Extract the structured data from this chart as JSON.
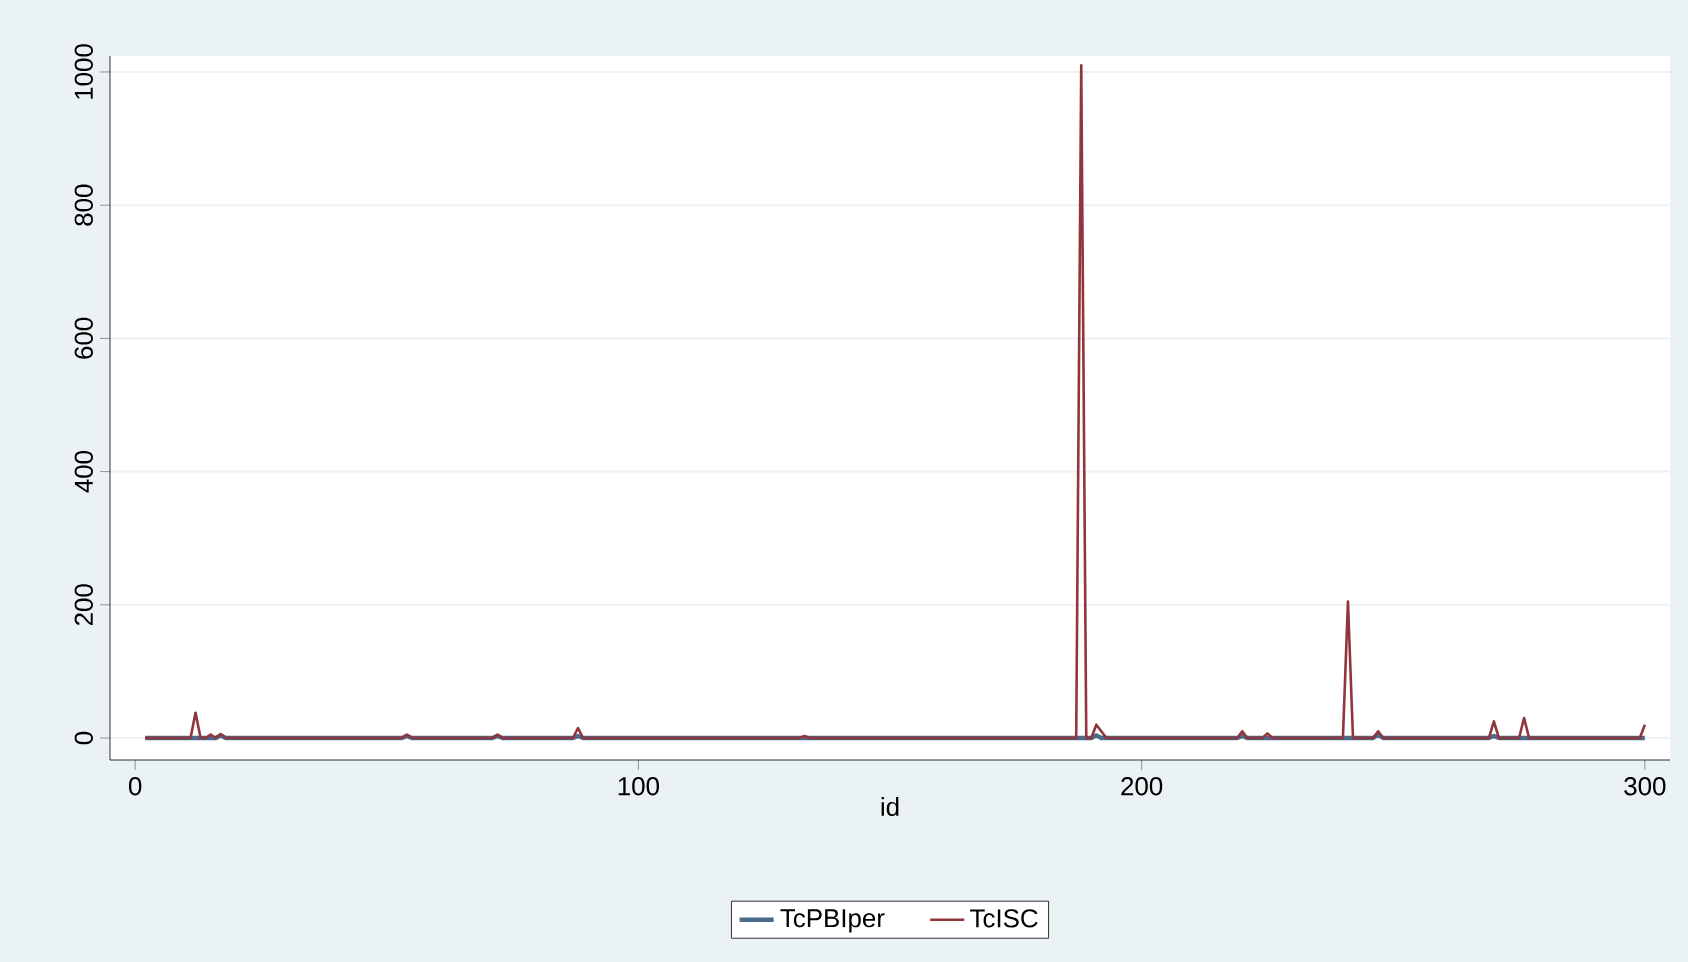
{
  "chart_data": {
    "type": "line",
    "xlabel": "id",
    "series": [
      {
        "name": "TcPBIper",
        "color": "#4a6b8c",
        "x": [
          2,
          16,
          17,
          18,
          53,
          54,
          55,
          71,
          72,
          73,
          87,
          88,
          89,
          190,
          191,
          192,
          219,
          220,
          221,
          246,
          247,
          248,
          269,
          270,
          271,
          299,
          300
        ],
        "values": [
          0,
          0,
          4,
          0,
          0,
          3,
          0,
          0,
          3,
          0,
          0,
          3,
          0,
          0,
          4,
          0,
          0,
          3,
          0,
          0,
          5,
          0,
          0,
          3,
          0,
          0,
          0
        ]
      },
      {
        "name": "TcISC",
        "color": "#90353b",
        "x": [
          2,
          11,
          12,
          13,
          14,
          15,
          16,
          17,
          18,
          53,
          54,
          55,
          71,
          72,
          73,
          87,
          88,
          89,
          132,
          133,
          134,
          187,
          188,
          189,
          190,
          191,
          193,
          219,
          220,
          221,
          224,
          225,
          226,
          240,
          241,
          242,
          246,
          247,
          248,
          269,
          270,
          271,
          275,
          276,
          277,
          299,
          300
        ],
        "values": [
          0,
          0,
          38,
          0,
          0,
          5,
          0,
          6,
          0,
          0,
          5,
          0,
          0,
          5,
          0,
          0,
          15,
          0,
          0,
          3,
          0,
          0,
          1010,
          0,
          0,
          20,
          0,
          0,
          10,
          0,
          0,
          7,
          0,
          0,
          205,
          0,
          0,
          10,
          0,
          0,
          25,
          0,
          0,
          30,
          0,
          0,
          20
        ]
      }
    ],
    "xlim": [
      -5,
      305
    ],
    "ylim": [
      -33,
      1024
    ],
    "xticks": [
      0,
      100,
      200,
      300
    ],
    "yticks": [
      0,
      200,
      400,
      600,
      800,
      1000
    ],
    "grid": "y",
    "legend": "bottom",
    "line_style": "solid",
    "marker": "none"
  }
}
